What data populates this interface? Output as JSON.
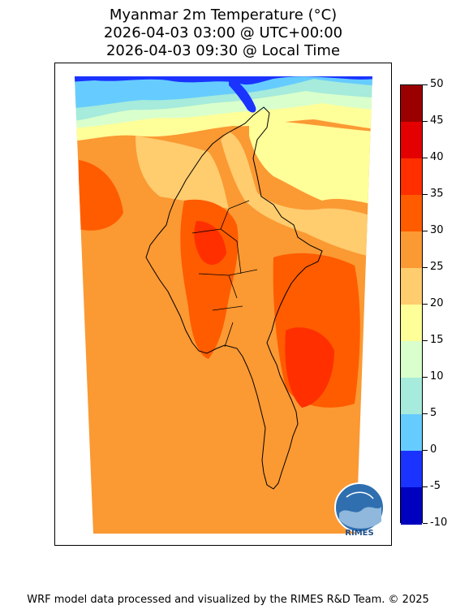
{
  "title": {
    "line1": "Myanmar 2m Temperature (°C)",
    "line2": "2026-04-03 03:00 @ UTC+00:00",
    "line3": "2026-04-03 09:30 @ Local Time"
  },
  "colorbar": {
    "ticks": [
      "50",
      "45",
      "40",
      "35",
      "30",
      "25",
      "20",
      "15",
      "10",
      "5",
      "0",
      "-5",
      "-10"
    ],
    "colors": [
      "#9b0000",
      "#e40000",
      "#ff2f00",
      "#ff5c00",
      "#fb9933",
      "#ffcc6e",
      "#ffff99",
      "#d9ffcc",
      "#a6ebdb",
      "#66ccff",
      "#1a33ff",
      "#0000bf"
    ]
  },
  "logo": {
    "text": "RIMES"
  },
  "footer": "WRF model data processed and visualized by the RIMES R&D Team. © 2025"
}
